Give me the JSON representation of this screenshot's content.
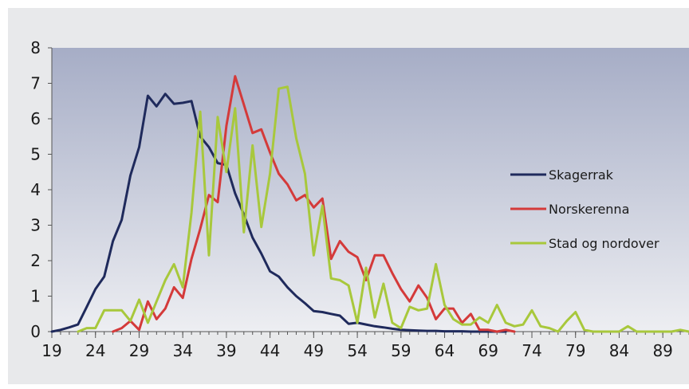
{
  "chart_data": {
    "type": "line",
    "title": "",
    "xlabel": "",
    "ylabel": "",
    "xlim": [
      19,
      92
    ],
    "ylim": [
      0,
      8
    ],
    "xticks": [
      19,
      24,
      29,
      34,
      39,
      44,
      49,
      54,
      59,
      64,
      69,
      74,
      79,
      84,
      89
    ],
    "yticks": [
      0,
      1,
      2,
      3,
      4,
      5,
      6,
      7,
      8
    ],
    "legend_position": "right",
    "grid": false,
    "x": [
      19,
      20,
      21,
      22,
      23,
      24,
      25,
      26,
      27,
      28,
      29,
      30,
      31,
      32,
      33,
      34,
      35,
      36,
      37,
      38,
      39,
      40,
      41,
      42,
      43,
      44,
      45,
      46,
      47,
      48,
      49,
      50,
      51,
      52,
      53,
      54,
      55,
      56,
      57,
      58,
      59,
      60,
      61,
      62,
      63,
      64,
      65,
      66,
      67,
      68,
      69,
      70,
      71,
      72,
      73,
      74,
      75,
      76,
      77,
      78,
      79,
      80,
      81,
      82,
      83,
      84,
      85,
      86,
      87,
      88,
      89,
      90,
      91,
      92
    ],
    "series": [
      {
        "name": "Skagerrak",
        "color": "#1f2a5c",
        "values": [
          0,
          0.05,
          0.12,
          0.2,
          0.7,
          1.2,
          1.55,
          2.55,
          3.15,
          4.4,
          5.2,
          6.65,
          6.35,
          6.7,
          6.42,
          6.45,
          6.5,
          5.5,
          5.2,
          4.75,
          4.7,
          3.9,
          3.3,
          2.65,
          2.2,
          1.7,
          1.55,
          1.25,
          1.0,
          0.8,
          0.58,
          0.55,
          0.5,
          0.45,
          0.22,
          0.25,
          0.2,
          0.15,
          0.12,
          0.08,
          0.05,
          0.04,
          0.03,
          0.02,
          0.02,
          0.01,
          0.01,
          0.01,
          0,
          0,
          0,
          0,
          0,
          null,
          null,
          null,
          null,
          null,
          null,
          null,
          null,
          null,
          null,
          null,
          null,
          null,
          null,
          null,
          null,
          null,
          null,
          null,
          null,
          null
        ]
      },
      {
        "name": "Norskerenna",
        "color": "#d43a3a",
        "values": [
          null,
          null,
          null,
          null,
          null,
          null,
          null,
          0,
          0.1,
          0.3,
          0.05,
          0.85,
          0.35,
          0.65,
          1.25,
          0.95,
          2.05,
          2.9,
          3.85,
          3.65,
          5.8,
          7.2,
          6.4,
          5.6,
          5.7,
          5.05,
          4.45,
          4.15,
          3.7,
          3.85,
          3.5,
          3.75,
          2.05,
          2.55,
          2.25,
          2.1,
          1.45,
          2.15,
          2.15,
          1.65,
          1.2,
          0.85,
          1.3,
          0.95,
          0.35,
          0.65,
          0.65,
          0.25,
          0.5,
          0.05,
          0.05,
          0,
          0.05,
          0,
          null,
          null,
          null,
          null,
          null,
          null,
          null,
          null,
          null,
          null,
          null,
          null,
          null,
          null,
          null,
          null,
          null,
          null,
          null,
          null
        ]
      },
      {
        "name": "Stad og nordover",
        "color": "#a8c83c",
        "values": [
          null,
          null,
          null,
          0,
          0.1,
          0.1,
          0.6,
          0.6,
          0.6,
          0.3,
          0.9,
          0.25,
          0.85,
          1.45,
          1.9,
          1.25,
          3.35,
          6.2,
          2.15,
          6.05,
          4.5,
          6.3,
          2.8,
          5.25,
          2.95,
          4.45,
          6.85,
          6.9,
          5.45,
          4.45,
          2.15,
          3.55,
          1.5,
          1.45,
          1.3,
          0.25,
          1.8,
          0.4,
          1.35,
          0.25,
          0.1,
          0.7,
          0.6,
          0.65,
          1.9,
          0.75,
          0.35,
          0.2,
          0.2,
          0.4,
          0.25,
          0.75,
          0.25,
          0.15,
          0.2,
          0.6,
          0.15,
          0.1,
          0,
          0.3,
          0.55,
          0.05,
          0,
          0,
          0,
          0,
          0.15,
          0,
          0,
          0,
          0,
          0,
          0.05,
          0
        ]
      }
    ]
  }
}
